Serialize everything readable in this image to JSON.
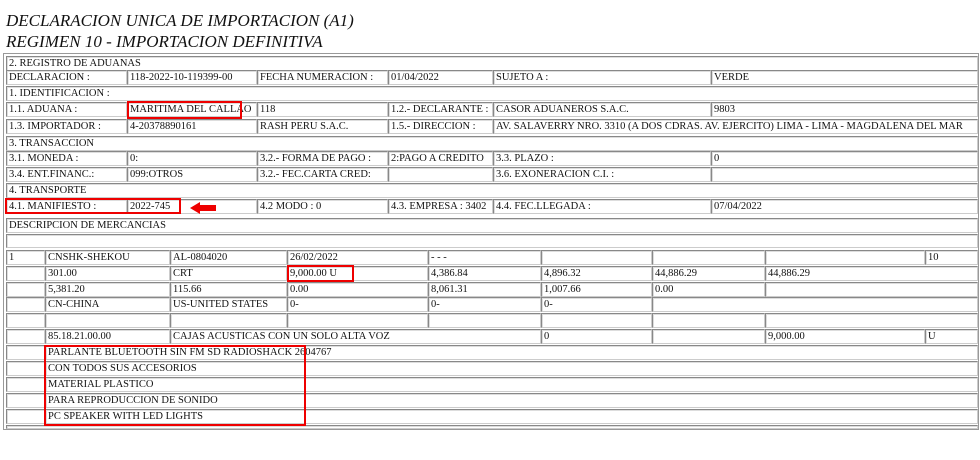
{
  "title_line1": "DECLARACION UNICA DE IMPORTACION (A1)",
  "title_line2": "REGIMEN 10 - IMPORTACION DEFINITIVA",
  "header": {
    "registro": "2. REGISTRO DE ADUANAS",
    "declaracion_label": "DECLARACION :",
    "declaracion": "118-2022-10-119399-00",
    "fecha_label": "FECHA NUMERACION :",
    "fecha": "01/04/2022",
    "sujeto_label": "SUJETO A :",
    "sujeto": "VERDE",
    "identificacion": "1. IDENTIFICACION :",
    "aduana_label": "1.1. ADUANA :",
    "aduana": "MARITIMA DEL CALLAO",
    "aduana_code": "118",
    "declarante_label": "1.2.- DECLARANTE :",
    "declarante": "CASOR ADUANEROS S.A.C.",
    "declarante_code": "9803",
    "importador_label": "1.3. IMPORTADOR :",
    "importador_ruc": "4-20378890161",
    "importador": "RASH PERU S.A.C.",
    "direccion_label": "1.5.- DIRECCION :",
    "direccion": "AV. SALAVERRY NRO. 3310 (A DOS CDRAS. AV. EJERCITO) LIMA - LIMA - MAGDALENA DEL MAR",
    "transaccion": "3. TRANSACCION",
    "moneda_label": "3.1. MONEDA :",
    "moneda": "0:",
    "forma_pago_label": "3.2.- FORMA DE PAGO :",
    "forma_pago": "2:PAGO A CREDITO",
    "plazo_label": "3.3. PLAZO :",
    "plazo": "0",
    "ent_financ_label": "3.4. ENT.FINANC.:",
    "ent_financ": "099:OTROS",
    "fec_carta_label": "3.2.- FEC.CARTA CRED:",
    "fec_carta": "",
    "exoneracion_label": "3.6. EXONERACION C.I. :",
    "exoneracion": "",
    "transporte": "4. TRANSPORTE",
    "manifiesto_label": "4.1. MANIFIESTO :",
    "manifiesto": "2022-745",
    "modo": "4.2 MODO :  0",
    "empresa": "4.3. EMPRESA : 3402",
    "fec_llegada_label": "4.4. FEC.LLEGADA :",
    "fec_llegada": "07/04/2022"
  },
  "mercancias": {
    "title": "DESCRIPCION DE MERCANCIAS",
    "rows": [
      [
        "1",
        "CNSHK-SHEKOU",
        "AL-0804020",
        "26/02/2022",
        "- - -",
        "",
        "",
        "",
        "10"
      ],
      [
        "",
        "301.00",
        "CRT",
        "9,000.00 U",
        "4,386.84",
        "4,896.32",
        "44,886.29",
        "44,886.29"
      ],
      [
        "",
        "5,381.20",
        "115.66",
        "0.00",
        "8,061.31",
        "1,007.66",
        "0.00",
        ""
      ],
      [
        "",
        "CN-CHINA",
        "US-UNITED STATES",
        "0-",
        "0-",
        "0-",
        ""
      ],
      [
        "",
        "",
        "",
        "",
        "",
        "",
        "",
        ""
      ],
      [
        "",
        "85.18.21.00.00",
        "CAJAS ACUSTICAS CON UN SOLO ALTA VOZ",
        "0",
        "",
        "9,000.00",
        "U"
      ]
    ],
    "descripcion": [
      "PARLANTE BLUETOOTH SIN FM SD RADIOSHACK 2604767",
      "CON TODOS SUS ACCESORIOS",
      "MATERIAL PLASTICO",
      "PARA REPRODUCCION DE SONIDO",
      "PC SPEAKER WITH LED LIGHTS"
    ]
  },
  "colors": {
    "highlight": "#e00000"
  }
}
